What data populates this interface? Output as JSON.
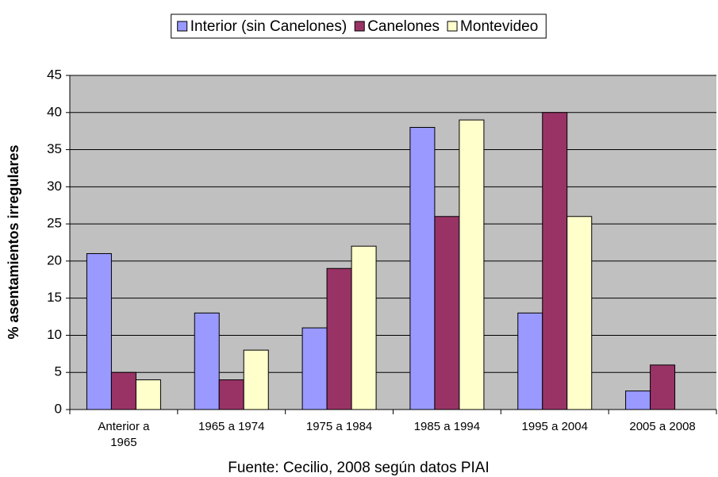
{
  "chart_data": {
    "type": "bar",
    "categories": [
      "Anterior a 1965",
      "1965 a 1974",
      "1975 a 1984",
      "1985 a 1994",
      "1995 a 2004",
      "2005 a 2008"
    ],
    "series": [
      {
        "name": "Interior (sin Canelones)",
        "color": "#9999ff",
        "values": [
          21,
          13,
          11,
          38,
          13,
          2.5
        ]
      },
      {
        "name": "Canelones",
        "color": "#993366",
        "values": [
          5,
          4,
          19,
          26,
          40,
          6
        ]
      },
      {
        "name": "Montevideo",
        "color": "#ffffcc",
        "values": [
          4,
          8,
          22,
          39,
          26,
          null
        ]
      }
    ],
    "ylabel": "% asentamientos irregulares",
    "caption": "Fuente: Cecilio, 2008 según datos PIAI",
    "ylim": [
      0,
      45
    ],
    "yticks": [
      0,
      5,
      10,
      15,
      20,
      25,
      30,
      35,
      40,
      45
    ],
    "grid": true,
    "legend": "top",
    "plot_background": "#c0c0c0"
  }
}
